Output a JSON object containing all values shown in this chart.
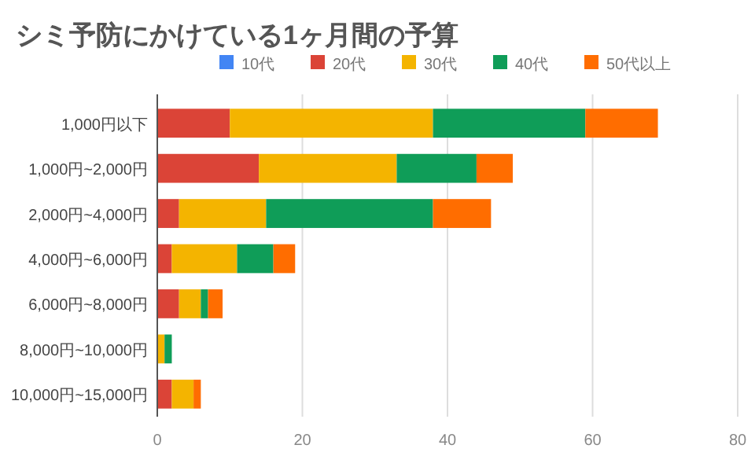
{
  "chart_data": {
    "type": "bar",
    "orientation": "horizontal",
    "stacked": true,
    "title": "シミ予防にかけている1ヶ月間の予算",
    "categories": [
      "1,000円以下",
      "1,000円~2,000円",
      "2,000円~4,000円",
      "4,000円~6,000円",
      "6,000円~8,000円",
      "8,000円~10,000円",
      "10,000円~15,000円"
    ],
    "series": [
      {
        "name": "10代",
        "color": "#4285f4",
        "values": [
          0,
          0,
          0,
          0,
          0,
          0,
          0
        ]
      },
      {
        "name": "20代",
        "color": "#db4437",
        "values": [
          10,
          14,
          3,
          2,
          3,
          0,
          2
        ]
      },
      {
        "name": "30代",
        "color": "#f4b400",
        "values": [
          28,
          19,
          12,
          9,
          3,
          1,
          3
        ]
      },
      {
        "name": "40代",
        "color": "#0f9d58",
        "values": [
          21,
          11,
          23,
          5,
          1,
          1,
          0
        ]
      },
      {
        "name": "50代以上",
        "color": "#ff6d00",
        "values": [
          10,
          5,
          8,
          3,
          2,
          0,
          1
        ]
      }
    ],
    "xlim": [
      0,
      80
    ],
    "xticks": [
      0,
      20,
      40,
      60,
      80
    ],
    "grid": "x",
    "legend": "top"
  }
}
